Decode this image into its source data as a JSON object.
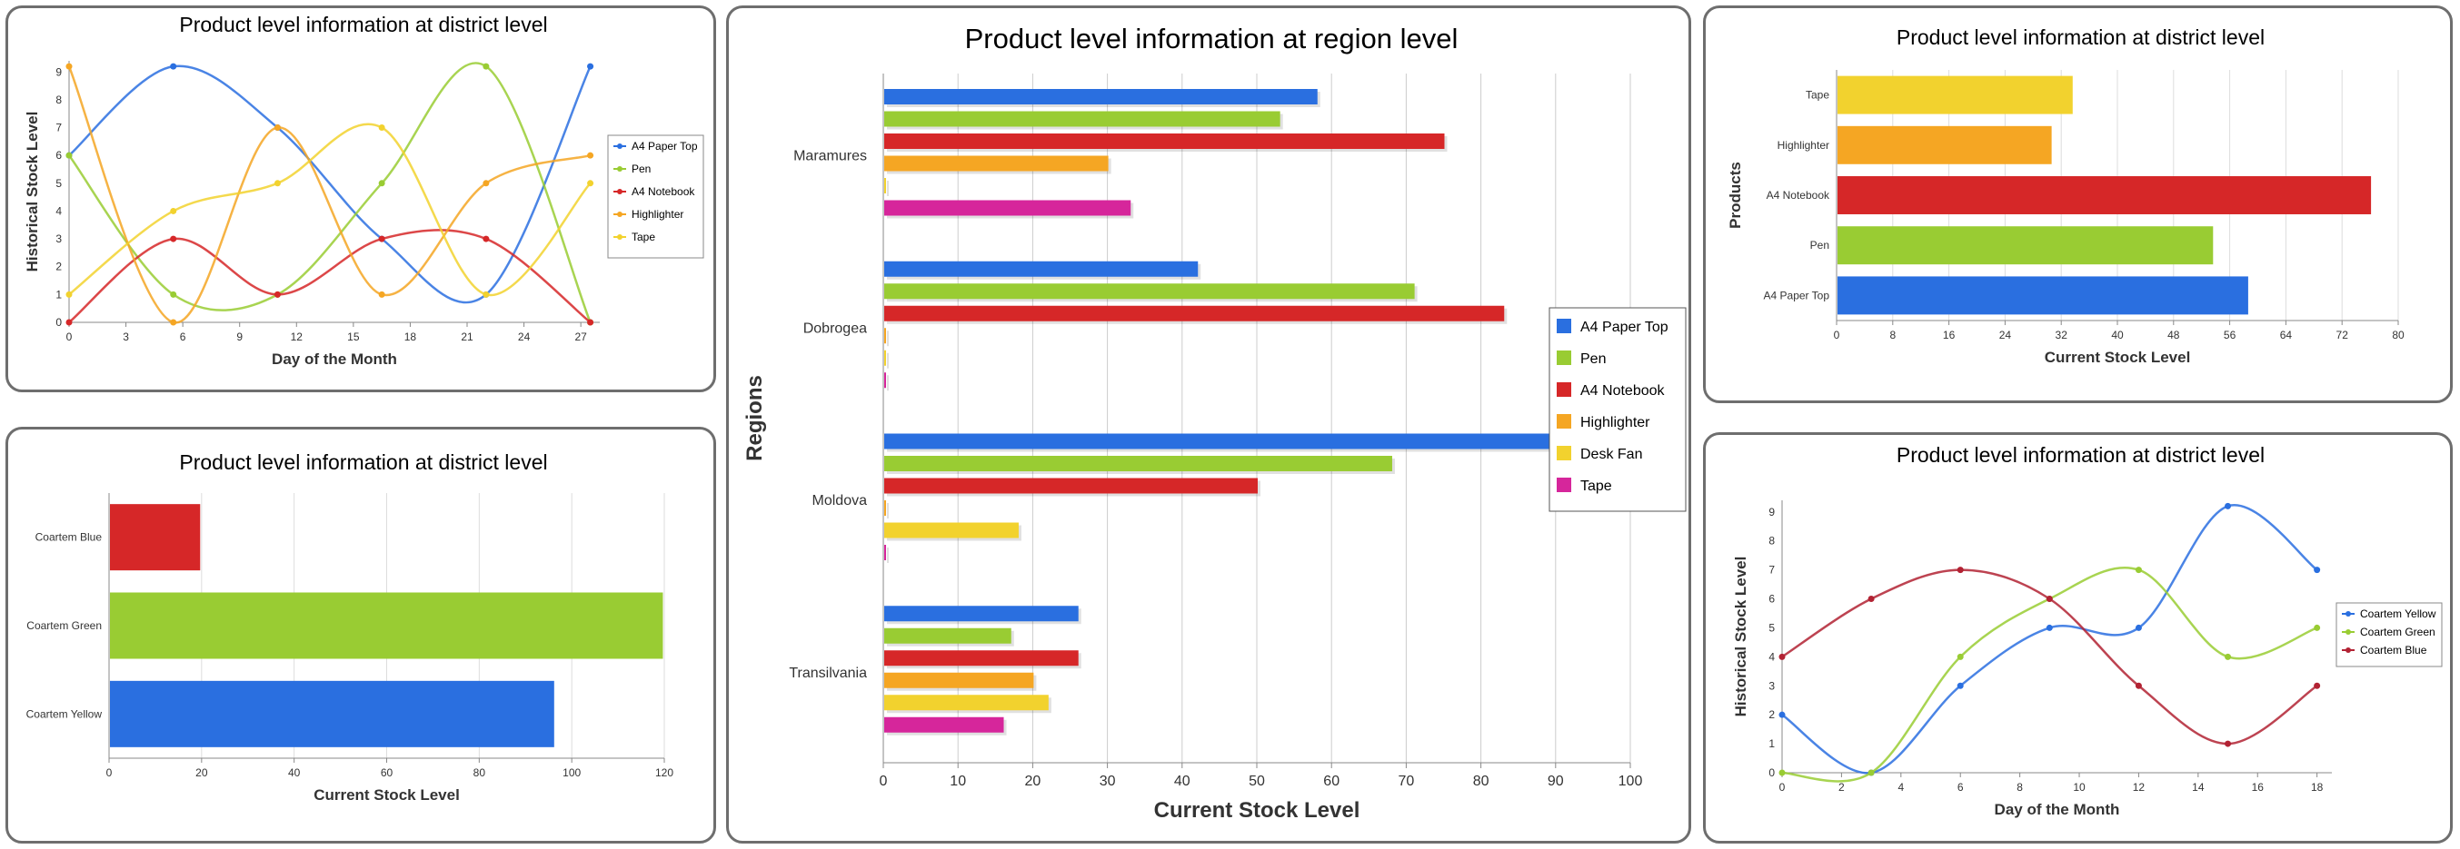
{
  "chart_data": [
    {
      "id": "p1",
      "type": "line",
      "title": "Product level information at district level",
      "xlabel": "Day of the Month",
      "ylabel": "Historical Stock Level",
      "xlim": [
        0,
        28
      ],
      "ylim": [
        0,
        9.4
      ],
      "xticks": [
        0,
        3,
        6,
        9,
        12,
        15,
        18,
        21,
        24,
        27
      ],
      "yticks": [
        0,
        1,
        2,
        3,
        4,
        5,
        6,
        7,
        8,
        9
      ],
      "grid": false,
      "legend": "right",
      "x": [
        0,
        5.5,
        11,
        16.5,
        22,
        27.5
      ],
      "series": [
        {
          "name": "A4 Paper Top",
          "color": "#2a6fe0",
          "values": [
            6,
            9.2,
            7,
            3,
            1,
            9.2
          ]
        },
        {
          "name": "Pen",
          "color": "#99cc33",
          "values": [
            6,
            1,
            1,
            5,
            9.2,
            0
          ]
        },
        {
          "name": "A4 Notebook",
          "color": "#d62728",
          "values": [
            0,
            3,
            1,
            3,
            3,
            0
          ]
        },
        {
          "name": "Highlighter",
          "color": "#f5a623",
          "values": [
            9.2,
            0,
            7,
            1,
            5,
            6
          ]
        },
        {
          "name": "Tape",
          "color": "#f2d22e",
          "values": [
            1,
            4,
            5,
            7,
            1,
            5
          ]
        }
      ]
    },
    {
      "id": "p2",
      "type": "bar",
      "orientation": "horizontal",
      "title": "Product level information at district level",
      "xlabel": "Current Stock Level",
      "ylabel": "",
      "xlim": [
        0,
        120
      ],
      "xticks": [
        0,
        20,
        40,
        60,
        80,
        100,
        120
      ],
      "grid": true,
      "categories": [
        "Coartem Blue",
        "Coartem Green",
        "Coartem Yellow"
      ],
      "values": [
        19.5,
        119.5,
        96
      ],
      "colors": [
        "#d62728",
        "#99cc33",
        "#2a6fe0"
      ]
    },
    {
      "id": "p3",
      "type": "bar",
      "orientation": "horizontal",
      "title": "Product level information at region level",
      "xlabel": "Current Stock Level",
      "ylabel": "Regions",
      "xlim": [
        0,
        100
      ],
      "xticks": [
        0,
        10,
        20,
        30,
        40,
        50,
        60,
        70,
        80,
        90,
        100
      ],
      "grid": true,
      "legend": "right",
      "categories": [
        "Maramures",
        "Dobrogea",
        "Moldova",
        "Transilvania"
      ],
      "series": [
        {
          "name": "A4 Paper Top",
          "color": "#2a6fe0",
          "values": [
            58,
            42,
            97.5,
            26
          ]
        },
        {
          "name": "Pen",
          "color": "#99cc33",
          "values": [
            53,
            71,
            68,
            17
          ]
        },
        {
          "name": "A4 Notebook",
          "color": "#d62728",
          "values": [
            75,
            83,
            50,
            26
          ]
        },
        {
          "name": "Highlighter",
          "color": "#f5a623",
          "values": [
            30,
            0,
            0,
            20
          ]
        },
        {
          "name": "Desk Fan",
          "color": "#f2d22e",
          "values": [
            0,
            0,
            18,
            22
          ]
        },
        {
          "name": "Tape",
          "color": "#d6269b",
          "values": [
            33,
            0,
            0,
            16
          ]
        }
      ]
    },
    {
      "id": "p4",
      "type": "bar",
      "orientation": "horizontal",
      "title": "Product level information at district level",
      "xlabel": "Current Stock Level",
      "ylabel": "Products",
      "xlim": [
        0,
        80
      ],
      "xticks": [
        0,
        8,
        16,
        24,
        32,
        40,
        48,
        56,
        64,
        72,
        80
      ],
      "grid": true,
      "categories": [
        "Tape",
        "Highlighter",
        "A4 Notebook",
        "Pen",
        "A4 Paper Top"
      ],
      "values": [
        33.5,
        30.5,
        76,
        53.5,
        58.5
      ],
      "colors": [
        "#f2d22e",
        "#f5a623",
        "#d62728",
        "#99cc33",
        "#2a6fe0"
      ]
    },
    {
      "id": "p5",
      "type": "line",
      "title": "Product level information at district level",
      "xlabel": "Day of the Month",
      "ylabel": "Historical Stock Level",
      "xlim": [
        0,
        18.5
      ],
      "ylim": [
        0,
        9.4
      ],
      "xticks": [
        0,
        2,
        4,
        6,
        8,
        10,
        12,
        14,
        16,
        18
      ],
      "yticks": [
        0,
        1,
        2,
        3,
        4,
        5,
        6,
        7,
        8,
        9
      ],
      "grid": false,
      "legend": "right",
      "x": [
        0,
        3,
        6,
        9,
        12,
        15,
        18
      ],
      "series": [
        {
          "name": "Coartem Yellow",
          "color": "#2a6fe0",
          "values": [
            2,
            0,
            3,
            5,
            5,
            9.2,
            7
          ]
        },
        {
          "name": "Coartem Green",
          "color": "#99cc33",
          "values": [
            0,
            0,
            4,
            6,
            7,
            4,
            5
          ]
        },
        {
          "name": "Coartem Blue",
          "color": "#b22233",
          "values": [
            4,
            6,
            7,
            6,
            3,
            1,
            3
          ]
        }
      ]
    }
  ]
}
